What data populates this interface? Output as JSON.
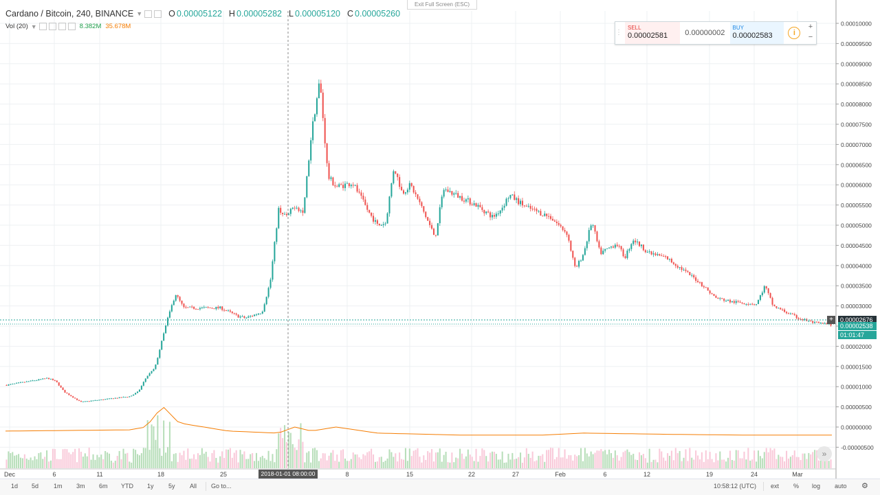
{
  "header": {
    "symbol": "Cardano / Bitcoin, 240, BINANCE",
    "o_label": "O",
    "o_value": "0.00005122",
    "h_label": "H",
    "h_value": "0.00005282",
    "l_label": "L",
    "l_value": "0.00005120",
    "c_label": "C",
    "c_value": "0.00005260"
  },
  "volume_legend": {
    "label": "Vol (20)",
    "value1": "8.382M",
    "value2": "35.678M"
  },
  "exit_fullscreen": "Exit Full Screen (ESC)",
  "trade_panel": {
    "sell_label": "SELL",
    "sell_value": "0.00002581",
    "spread": "0.00000002",
    "buy_label": "BUY",
    "buy_value": "0.00002583",
    "info_icon": "i",
    "plus": "+",
    "minus": "−"
  },
  "price_tags": {
    "last_price": "0.00002676",
    "current": "0.00002538",
    "countdown": "01:01:47",
    "crosshair_time": "2018-01-01 08:00:00"
  },
  "bottom_bar": {
    "timeframes": [
      "1d",
      "5d",
      "1m",
      "3m",
      "6m",
      "YTD",
      "1y",
      "5y",
      "All"
    ],
    "goto": "Go to...",
    "clock": "10:58:12 (UTC)",
    "ext": "ext",
    "percent": "%",
    "log": "log",
    "auto": "auto"
  },
  "scroll_button": "»",
  "colors": {
    "up": "#26a69a",
    "down": "#ef5350",
    "vol_up": "#a5d6a7",
    "vol_down": "#f8bbd0",
    "vol_ma": "#f57c00"
  },
  "chart_data": {
    "type": "candlestick",
    "ylim": [
      -6e-07,
      1.02e-05
    ],
    "y_ticks": [
      "0.00010000",
      "0.00009500",
      "0.00009000",
      "0.00008500",
      "0.00008000",
      "0.00007500",
      "0.00007000",
      "0.00006500",
      "0.00006000",
      "0.00005500",
      "0.00005000",
      "0.00004500",
      "0.00004000",
      "0.00003500",
      "0.00003000",
      "0.00002500",
      "0.00002000",
      "0.00001500",
      "0.00001000",
      "0.00000500",
      "0.00000000",
      "-0.00000500"
    ],
    "x_ticks": [
      "Dec",
      "6",
      "11",
      "18",
      "25",
      "8",
      "15",
      "22",
      "27",
      "Feb",
      "6",
      "12",
      "19",
      "24",
      "Mar"
    ],
    "price_path": [
      [
        0,
        1.04e-05
      ],
      [
        0.05,
        1.21e-05
      ],
      [
        0.06,
        1.13e-05
      ],
      [
        0.07,
        8.7e-06
      ],
      [
        0.09,
        6.2e-06
      ],
      [
        0.12,
        6.9e-06
      ],
      [
        0.15,
        7.6e-06
      ],
      [
        0.16,
        8.8e-06
      ],
      [
        0.17,
        1.25e-05
      ],
      [
        0.18,
        1.46e-05
      ],
      [
        0.195,
        2.65e-05
      ],
      [
        0.205,
        3.3e-05
      ],
      [
        0.215,
        2.95e-05
      ],
      [
        0.26,
        2.95e-05
      ],
      [
        0.28,
        2.75e-05
      ],
      [
        0.29,
        2.7e-05
      ],
      [
        0.31,
        2.85e-05
      ],
      [
        0.32,
        3.6e-05
      ],
      [
        0.33,
        5.4e-05
      ],
      [
        0.34,
        5.2e-05
      ],
      [
        0.35,
        5.5e-05
      ],
      [
        0.36,
        5.3e-05
      ],
      [
        0.37,
        7.3e-05
      ],
      [
        0.38,
        8.6e-05
      ],
      [
        0.385,
        7.4e-05
      ],
      [
        0.39,
        6.2e-05
      ],
      [
        0.4,
        5.95e-05
      ],
      [
        0.42,
        6.05e-05
      ],
      [
        0.44,
        5.3e-05
      ],
      [
        0.45,
        5e-05
      ],
      [
        0.46,
        5.05e-05
      ],
      [
        0.47,
        6.45e-05
      ],
      [
        0.48,
        5.8e-05
      ],
      [
        0.49,
        6e-05
      ],
      [
        0.5,
        5.6e-05
      ],
      [
        0.52,
        4.7e-05
      ],
      [
        0.53,
        5.9e-05
      ],
      [
        0.55,
        5.7e-05
      ],
      [
        0.57,
        5.5e-05
      ],
      [
        0.59,
        5.2e-05
      ],
      [
        0.6,
        5.4e-05
      ],
      [
        0.61,
        5.75e-05
      ],
      [
        0.63,
        5.45e-05
      ],
      [
        0.66,
        5.2e-05
      ],
      [
        0.68,
        4.8e-05
      ],
      [
        0.69,
        3.9e-05
      ],
      [
        0.7,
        4.3e-05
      ],
      [
        0.71,
        5.1e-05
      ],
      [
        0.72,
        4.3e-05
      ],
      [
        0.74,
        4.55e-05
      ],
      [
        0.75,
        4.2e-05
      ],
      [
        0.76,
        4.65e-05
      ],
      [
        0.78,
        4.3e-05
      ],
      [
        0.8,
        4.2e-05
      ],
      [
        0.82,
        3.9e-05
      ],
      [
        0.84,
        3.6e-05
      ],
      [
        0.86,
        3.2e-05
      ],
      [
        0.88,
        3.1e-05
      ],
      [
        0.91,
        3.05e-05
      ],
      [
        0.92,
        3.5e-05
      ],
      [
        0.93,
        3e-05
      ],
      [
        0.96,
        2.7e-05
      ],
      [
        0.98,
        2.58e-05
      ],
      [
        1.0,
        2.54e-05
      ]
    ],
    "volume_ma_path": [
      [
        0,
        -1e-06
      ],
      [
        0.15,
        -7e-07
      ],
      [
        0.17,
        0.0
      ],
      [
        0.19,
        5.2e-06
      ],
      [
        0.21,
        1e-06
      ],
      [
        0.27,
        -1e-06
      ],
      [
        0.33,
        -1.5e-06
      ],
      [
        0.35,
        0.0
      ],
      [
        0.37,
        -1e-06
      ],
      [
        0.4,
        0.0
      ],
      [
        0.45,
        -1.5e-06
      ],
      [
        0.55,
        -2e-06
      ],
      [
        0.65,
        -2e-06
      ],
      [
        0.7,
        -1.5e-06
      ],
      [
        0.8,
        -1.8e-06
      ],
      [
        0.9,
        -2e-06
      ],
      [
        1.0,
        -2e-06
      ]
    ]
  }
}
